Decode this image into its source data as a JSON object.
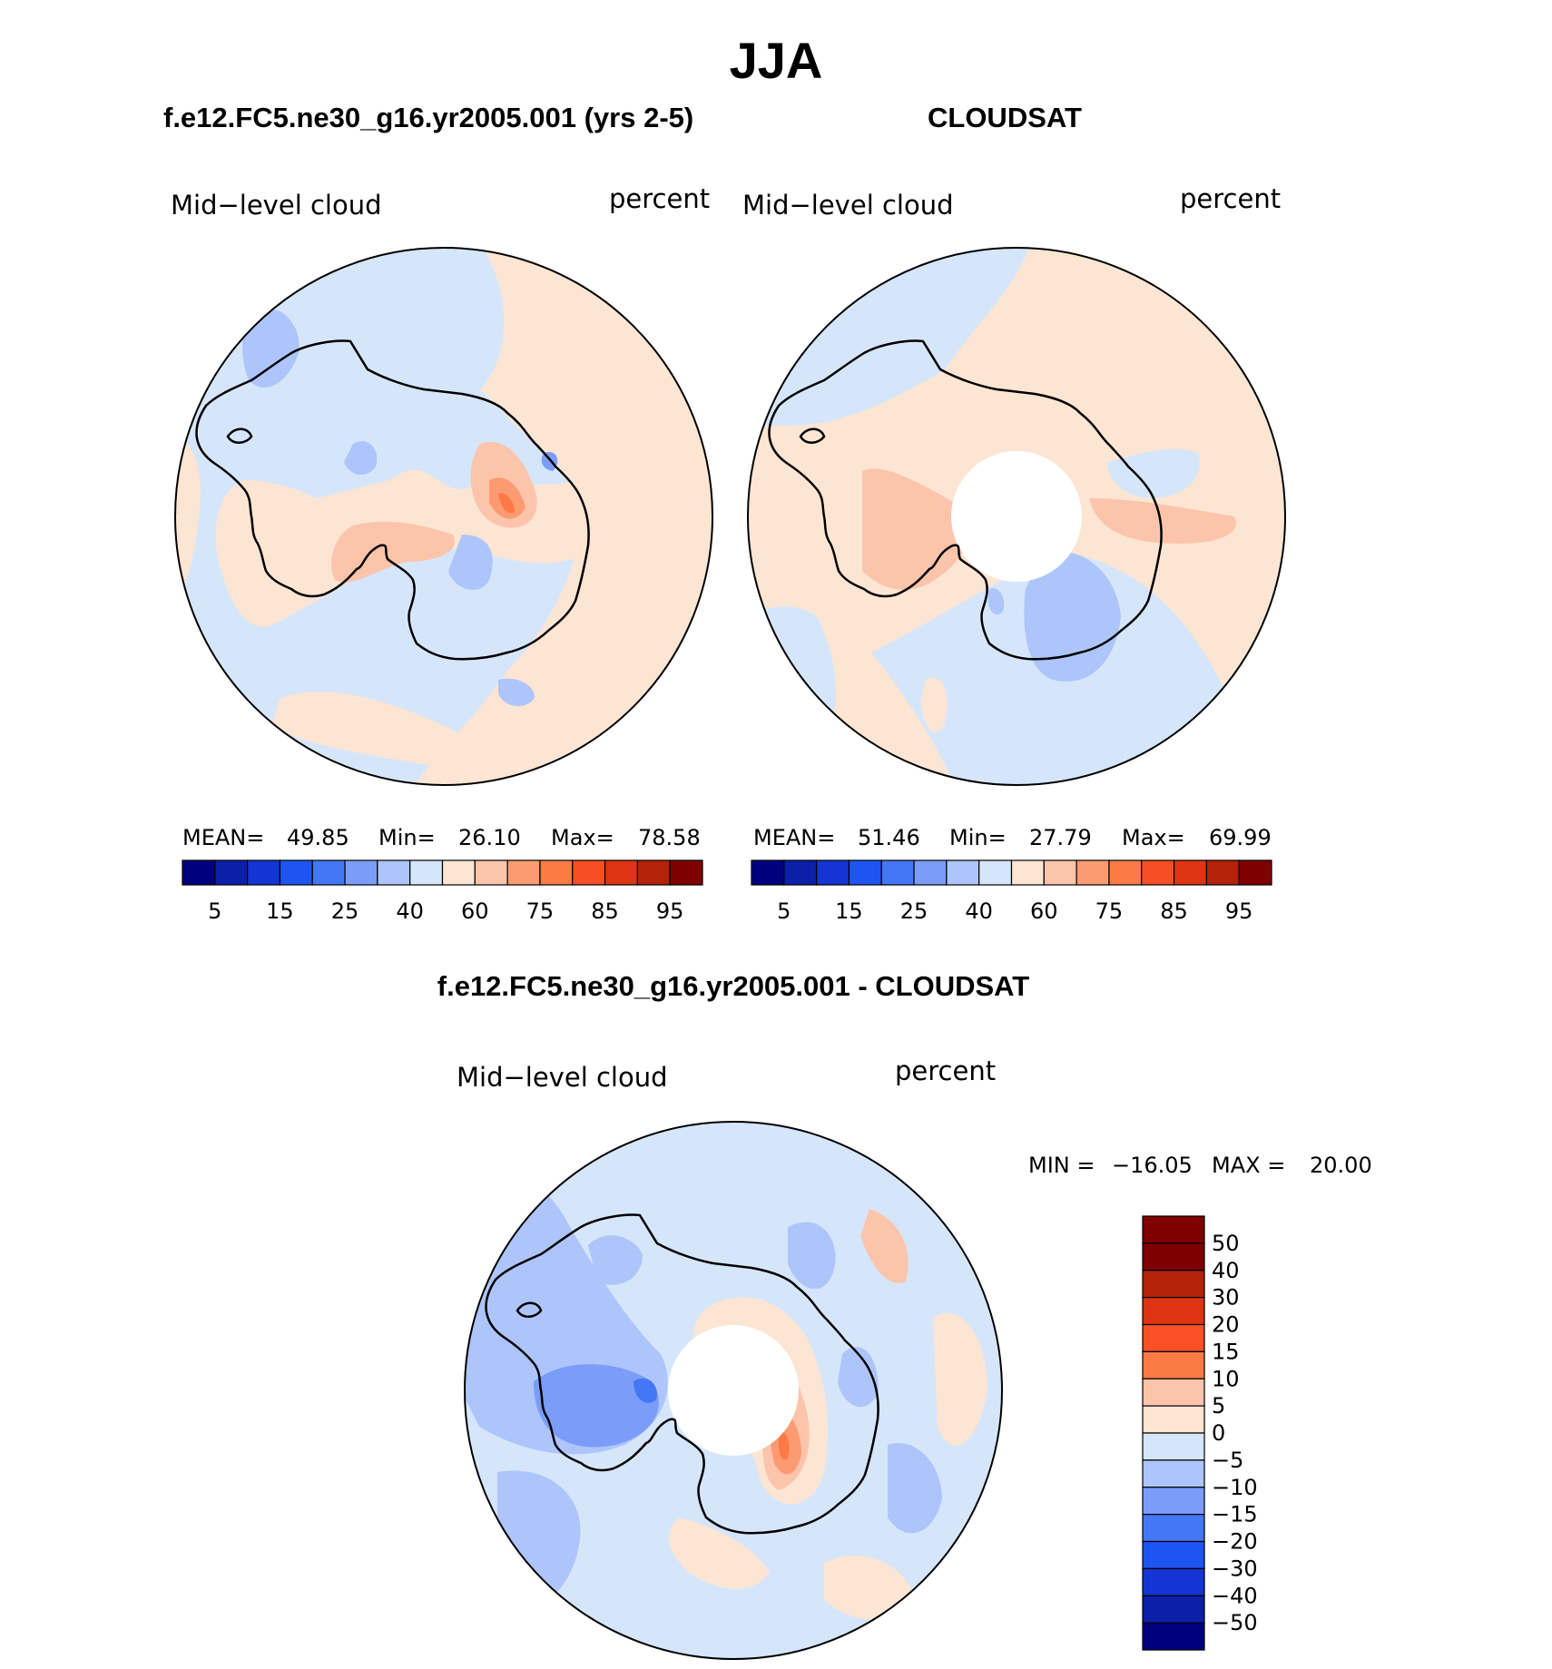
{
  "title": "JJA",
  "panels": [
    {
      "id": "model",
      "heading": "f.e12.FC5.ne30_g16.yr2005.001 (yrs 2-5)",
      "variable": "Mid−level cloud",
      "units": "percent",
      "stats": {
        "mean_label": "MEAN=",
        "mean": "49.85",
        "min_label": "Min=",
        "min": "26.10",
        "max_label": "Max=",
        "max": "78.58"
      }
    },
    {
      "id": "obs",
      "heading": "CLOUDSAT",
      "variable": "Mid−level cloud",
      "units": "percent",
      "stats": {
        "mean_label": "MEAN=",
        "mean": "51.46",
        "min_label": "Min=",
        "min": "27.79",
        "max_label": "Max=",
        "max": "69.99"
      }
    },
    {
      "id": "diff",
      "heading": "f.e12.FC5.ne30_g16.yr2005.001 - CLOUDSAT",
      "variable": "Mid−level cloud",
      "units": "percent",
      "stats": {
        "min_label": "MIN =",
        "min": "−16.05",
        "max_label": "MAX =",
        "max": "20.00"
      }
    }
  ],
  "colorbar_abs": {
    "colors": [
      "#00007f",
      "#0b1fa8",
      "#1336d2",
      "#1e55f0",
      "#4477f5",
      "#7b9cf8",
      "#adc5fa",
      "#d5e6fb",
      "#fde5d3",
      "#fcc4ab",
      "#fc9b72",
      "#fc7a45",
      "#f64f26",
      "#de3412",
      "#b32209",
      "#7f0000"
    ],
    "tick_labels": [
      "5",
      "15",
      "25",
      "40",
      "60",
      "75",
      "85",
      "95"
    ]
  },
  "colorbar_diff": {
    "colors": [
      "#7f0000",
      "#b32209",
      "#de3412",
      "#fc5024",
      "#fc7a45",
      "#fcc4ab",
      "#fde5d3",
      "#d5e6fb",
      "#adc5fa",
      "#7b9cf8",
      "#4477f5",
      "#1e55f0",
      "#1336d2",
      "#0b1fa8",
      "#00007f"
    ],
    "tick_labels": [
      "50",
      "40",
      "30",
      "20",
      "15",
      "10",
      "5",
      "0",
      "−5",
      "−10",
      "−15",
      "−20",
      "−30",
      "−40",
      "−50"
    ]
  },
  "field_colors": {
    "ocean_light_blue": "#d5e6fb",
    "light_peach": "#fde5d3",
    "salmon": "#fcc4ab",
    "orange": "#fc9b72",
    "red_orange": "#fc7a45",
    "blue_light": "#adc5fa",
    "blue_mid": "#7b9cf8",
    "blue_deep": "#4477f5"
  }
}
